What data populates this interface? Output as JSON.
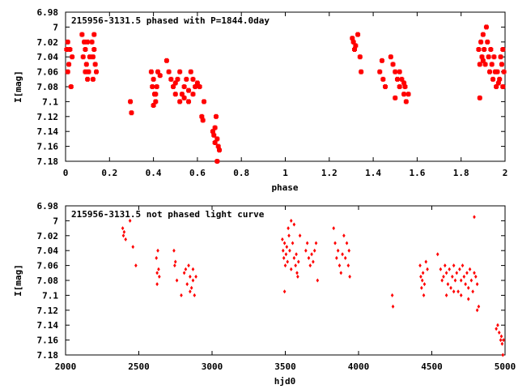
{
  "chart_data": [
    {
      "type": "scatter",
      "title": "215956-3131.5 phased with P=1844.0day",
      "xlabel": "phase",
      "ylabel": "I[mag]",
      "xlim": [
        0,
        2
      ],
      "ylim": [
        7.18,
        6.98
      ],
      "y_inverted": true,
      "grid": false,
      "marker_color": "#ff0000",
      "xticks": [
        "0",
        "0.2",
        "0.4",
        "0.6",
        "0.8",
        "1",
        "1.2",
        "1.4",
        "1.6",
        "1.8",
        "2"
      ],
      "yticks": [
        "6.98",
        "7",
        "7.02",
        "7.04",
        "7.06",
        "7.08",
        "7.1",
        "7.12",
        "7.14",
        "7.16",
        "7.18"
      ],
      "points": [
        [
          0.005,
          7.03
        ],
        [
          0.01,
          7.02
        ],
        [
          0.015,
          7.05
        ],
        [
          0.02,
          7.03
        ],
        [
          0.025,
          7.08
        ],
        [
          0.01,
          7.06
        ],
        [
          0.03,
          7.04
        ],
        [
          0.075,
          7.01
        ],
        [
          0.08,
          7.04
        ],
        [
          0.085,
          7.02
        ],
        [
          0.09,
          7.03
        ],
        [
          0.095,
          7.05
        ],
        [
          0.1,
          7.07
        ],
        [
          0.105,
          7.06
        ],
        [
          0.11,
          7.04
        ],
        [
          0.09,
          7.06
        ],
        [
          0.1,
          7.02
        ],
        [
          0.12,
          7.02
        ],
        [
          0.125,
          7.04
        ],
        [
          0.13,
          7.03
        ],
        [
          0.135,
          7.05
        ],
        [
          0.14,
          7.06
        ],
        [
          0.125,
          7.07
        ],
        [
          0.13,
          7.01
        ],
        [
          0.295,
          7.1
        ],
        [
          0.3,
          7.115
        ],
        [
          0.39,
          7.06
        ],
        [
          0.395,
          7.08
        ],
        [
          0.4,
          7.07
        ],
        [
          0.405,
          7.09
        ],
        [
          0.41,
          7.1
        ],
        [
          0.415,
          7.08
        ],
        [
          0.4,
          7.105
        ],
        [
          0.42,
          7.06
        ],
        [
          0.43,
          7.065
        ],
        [
          0.41,
          7.09
        ],
        [
          0.46,
          7.045
        ],
        [
          0.47,
          7.06
        ],
        [
          0.48,
          7.07
        ],
        [
          0.49,
          7.08
        ],
        [
          0.5,
          7.075
        ],
        [
          0.51,
          7.07
        ],
        [
          0.52,
          7.06
        ],
        [
          0.53,
          7.09
        ],
        [
          0.54,
          7.08
        ],
        [
          0.55,
          7.07
        ],
        [
          0.56,
          7.085
        ],
        [
          0.57,
          7.06
        ],
        [
          0.58,
          7.07
        ],
        [
          0.59,
          7.08
        ],
        [
          0.6,
          7.075
        ],
        [
          0.52,
          7.1
        ],
        [
          0.54,
          7.095
        ],
        [
          0.56,
          7.1
        ],
        [
          0.58,
          7.09
        ],
        [
          0.5,
          7.09
        ],
        [
          0.62,
          7.12
        ],
        [
          0.625,
          7.125
        ],
        [
          0.63,
          7.1
        ],
        [
          0.61,
          7.08
        ],
        [
          0.67,
          7.14
        ],
        [
          0.675,
          7.145
        ],
        [
          0.68,
          7.135
        ],
        [
          0.685,
          7.12
        ],
        [
          0.69,
          7.15
        ],
        [
          0.695,
          7.16
        ],
        [
          0.7,
          7.165
        ],
        [
          0.69,
          7.18
        ],
        [
          0.68,
          7.155
        ],
        [
          1.305,
          7.015
        ],
        [
          1.31,
          7.02
        ],
        [
          1.315,
          7.03
        ],
        [
          1.32,
          7.025
        ],
        [
          1.33,
          7.01
        ],
        [
          1.34,
          7.04
        ],
        [
          1.345,
          7.06
        ],
        [
          1.43,
          7.06
        ],
        [
          1.44,
          7.045
        ],
        [
          1.445,
          7.07
        ],
        [
          1.455,
          7.08
        ],
        [
          1.48,
          7.04
        ],
        [
          1.49,
          7.05
        ],
        [
          1.5,
          7.06
        ],
        [
          1.51,
          7.07
        ],
        [
          1.52,
          7.08
        ],
        [
          1.53,
          7.07
        ],
        [
          1.54,
          7.09
        ],
        [
          1.545,
          7.08
        ],
        [
          1.55,
          7.1
        ],
        [
          1.56,
          7.09
        ],
        [
          1.5,
          7.095
        ],
        [
          1.52,
          7.06
        ],
        [
          1.54,
          7.075
        ],
        [
          1.88,
          7.03
        ],
        [
          1.885,
          7.05
        ],
        [
          1.89,
          7.02
        ],
        [
          1.895,
          7.04
        ],
        [
          1.9,
          7.01
        ],
        [
          1.905,
          7.03
        ],
        [
          1.91,
          7.05
        ],
        [
          1.915,
          7.0
        ],
        [
          1.92,
          7.02
        ],
        [
          1.925,
          7.04
        ],
        [
          1.93,
          7.06
        ],
        [
          1.935,
          7.03
        ],
        [
          1.94,
          7.05
        ],
        [
          1.945,
          7.07
        ],
        [
          1.95,
          7.04
        ],
        [
          1.955,
          7.06
        ],
        [
          1.885,
          7.095
        ],
        [
          1.9,
          7.045
        ],
        [
          1.96,
          7.08
        ],
        [
          1.965,
          7.06
        ],
        [
          1.97,
          7.075
        ],
        [
          1.975,
          7.07
        ],
        [
          1.98,
          7.04
        ],
        [
          1.985,
          7.05
        ],
        [
          1.99,
          7.03
        ],
        [
          1.995,
          7.06
        ],
        [
          1.99,
          7.08
        ]
      ]
    },
    {
      "type": "scatter",
      "title": "215956-3131.5 not phased light curve",
      "xlabel": "hjd0",
      "ylabel": "I[mag]",
      "xlim": [
        2000,
        5000
      ],
      "ylim": [
        7.18,
        6.98
      ],
      "y_inverted": true,
      "grid": false,
      "marker_color": "#ff0000",
      "xticks": [
        "2000",
        "2500",
        "3000",
        "3500",
        "4000",
        "4500",
        "5000"
      ],
      "yticks": [
        "6.98",
        "7",
        "7.02",
        "7.04",
        "7.06",
        "7.08",
        "7.1",
        "7.12",
        "7.14",
        "7.16",
        "7.18"
      ],
      "points": [
        [
          2390,
          7.01
        ],
        [
          2395,
          7.02
        ],
        [
          2400,
          7.015
        ],
        [
          2410,
          7.025
        ],
        [
          2440,
          7.0
        ],
        [
          2460,
          7.035
        ],
        [
          2480,
          7.06
        ],
        [
          2620,
          7.05
        ],
        [
          2625,
          7.07
        ],
        [
          2630,
          7.04
        ],
        [
          2635,
          7.065
        ],
        [
          2640,
          7.075
        ],
        [
          2625,
          7.085
        ],
        [
          2740,
          7.04
        ],
        [
          2745,
          7.06
        ],
        [
          2750,
          7.055
        ],
        [
          2760,
          7.08
        ],
        [
          2790,
          7.1
        ],
        [
          2810,
          7.07
        ],
        [
          2820,
          7.065
        ],
        [
          2830,
          7.085
        ],
        [
          2840,
          7.06
        ],
        [
          2850,
          7.075
        ],
        [
          2860,
          7.09
        ],
        [
          2870,
          7.08
        ],
        [
          2880,
          7.1
        ],
        [
          2890,
          7.075
        ],
        [
          2870,
          7.065
        ],
        [
          2850,
          7.095
        ],
        [
          3480,
          7.025
        ],
        [
          3485,
          7.04
        ],
        [
          3490,
          7.05
        ],
        [
          3495,
          7.03
        ],
        [
          3500,
          7.06
        ],
        [
          3505,
          7.045
        ],
        [
          3510,
          7.035
        ],
        [
          3515,
          7.055
        ],
        [
          3520,
          7.01
        ],
        [
          3525,
          7.02
        ],
        [
          3530,
          7.04
        ],
        [
          3540,
          7.0
        ],
        [
          3550,
          7.03
        ],
        [
          3560,
          7.05
        ],
        [
          3570,
          7.06
        ],
        [
          3575,
          7.045
        ],
        [
          3580,
          7.07
        ],
        [
          3590,
          7.055
        ],
        [
          3495,
          7.095
        ],
        [
          3585,
          7.075
        ],
        [
          3600,
          7.02
        ],
        [
          3540,
          7.065
        ],
        [
          3560,
          7.005
        ],
        [
          3640,
          7.04
        ],
        [
          3650,
          7.03
        ],
        [
          3660,
          7.05
        ],
        [
          3670,
          7.06
        ],
        [
          3680,
          7.045
        ],
        [
          3690,
          7.055
        ],
        [
          3700,
          7.04
        ],
        [
          3710,
          7.03
        ],
        [
          3720,
          7.08
        ],
        [
          3830,
          7.01
        ],
        [
          3840,
          7.03
        ],
        [
          3850,
          7.05
        ],
        [
          3860,
          7.04
        ],
        [
          3870,
          7.06
        ],
        [
          3880,
          7.07
        ],
        [
          3890,
          7.045
        ],
        [
          3900,
          7.02
        ],
        [
          3910,
          7.05
        ],
        [
          3920,
          7.03
        ],
        [
          3930,
          7.06
        ],
        [
          3935,
          7.04
        ],
        [
          3940,
          7.075
        ],
        [
          4230,
          7.1
        ],
        [
          4235,
          7.115
        ],
        [
          4420,
          7.06
        ],
        [
          4425,
          7.075
        ],
        [
          4430,
          7.09
        ],
        [
          4435,
          7.08
        ],
        [
          4440,
          7.07
        ],
        [
          4445,
          7.1
        ],
        [
          4450,
          7.085
        ],
        [
          4460,
          7.055
        ],
        [
          4470,
          7.065
        ],
        [
          4540,
          7.045
        ],
        [
          4560,
          7.065
        ],
        [
          4570,
          7.08
        ],
        [
          4580,
          7.075
        ],
        [
          4590,
          7.06
        ],
        [
          4600,
          7.07
        ],
        [
          4610,
          7.085
        ],
        [
          4620,
          7.065
        ],
        [
          4630,
          7.09
        ],
        [
          4640,
          7.075
        ],
        [
          4650,
          7.06
        ],
        [
          4660,
          7.08
        ],
        [
          4670,
          7.07
        ],
        [
          4680,
          7.095
        ],
        [
          4690,
          7.065
        ],
        [
          4700,
          7.08
        ],
        [
          4710,
          7.06
        ],
        [
          4720,
          7.075
        ],
        [
          4730,
          7.085
        ],
        [
          4740,
          7.07
        ],
        [
          4750,
          7.09
        ],
        [
          4760,
          7.065
        ],
        [
          4770,
          7.08
        ],
        [
          4780,
          7.095
        ],
        [
          4790,
          7.07
        ],
        [
          4800,
          7.075
        ],
        [
          4810,
          7.085
        ],
        [
          4600,
          7.1
        ],
        [
          4650,
          7.095
        ],
        [
          4700,
          7.1
        ],
        [
          4750,
          7.105
        ],
        [
          4790,
          6.995
        ],
        [
          4810,
          7.12
        ],
        [
          4820,
          7.115
        ],
        [
          4940,
          7.145
        ],
        [
          4950,
          7.14
        ],
        [
          4960,
          7.15
        ],
        [
          4970,
          7.16
        ],
        [
          4975,
          7.155
        ],
        [
          4980,
          7.165
        ],
        [
          4990,
          7.16
        ],
        [
          4985,
          7.18
        ]
      ]
    }
  ]
}
